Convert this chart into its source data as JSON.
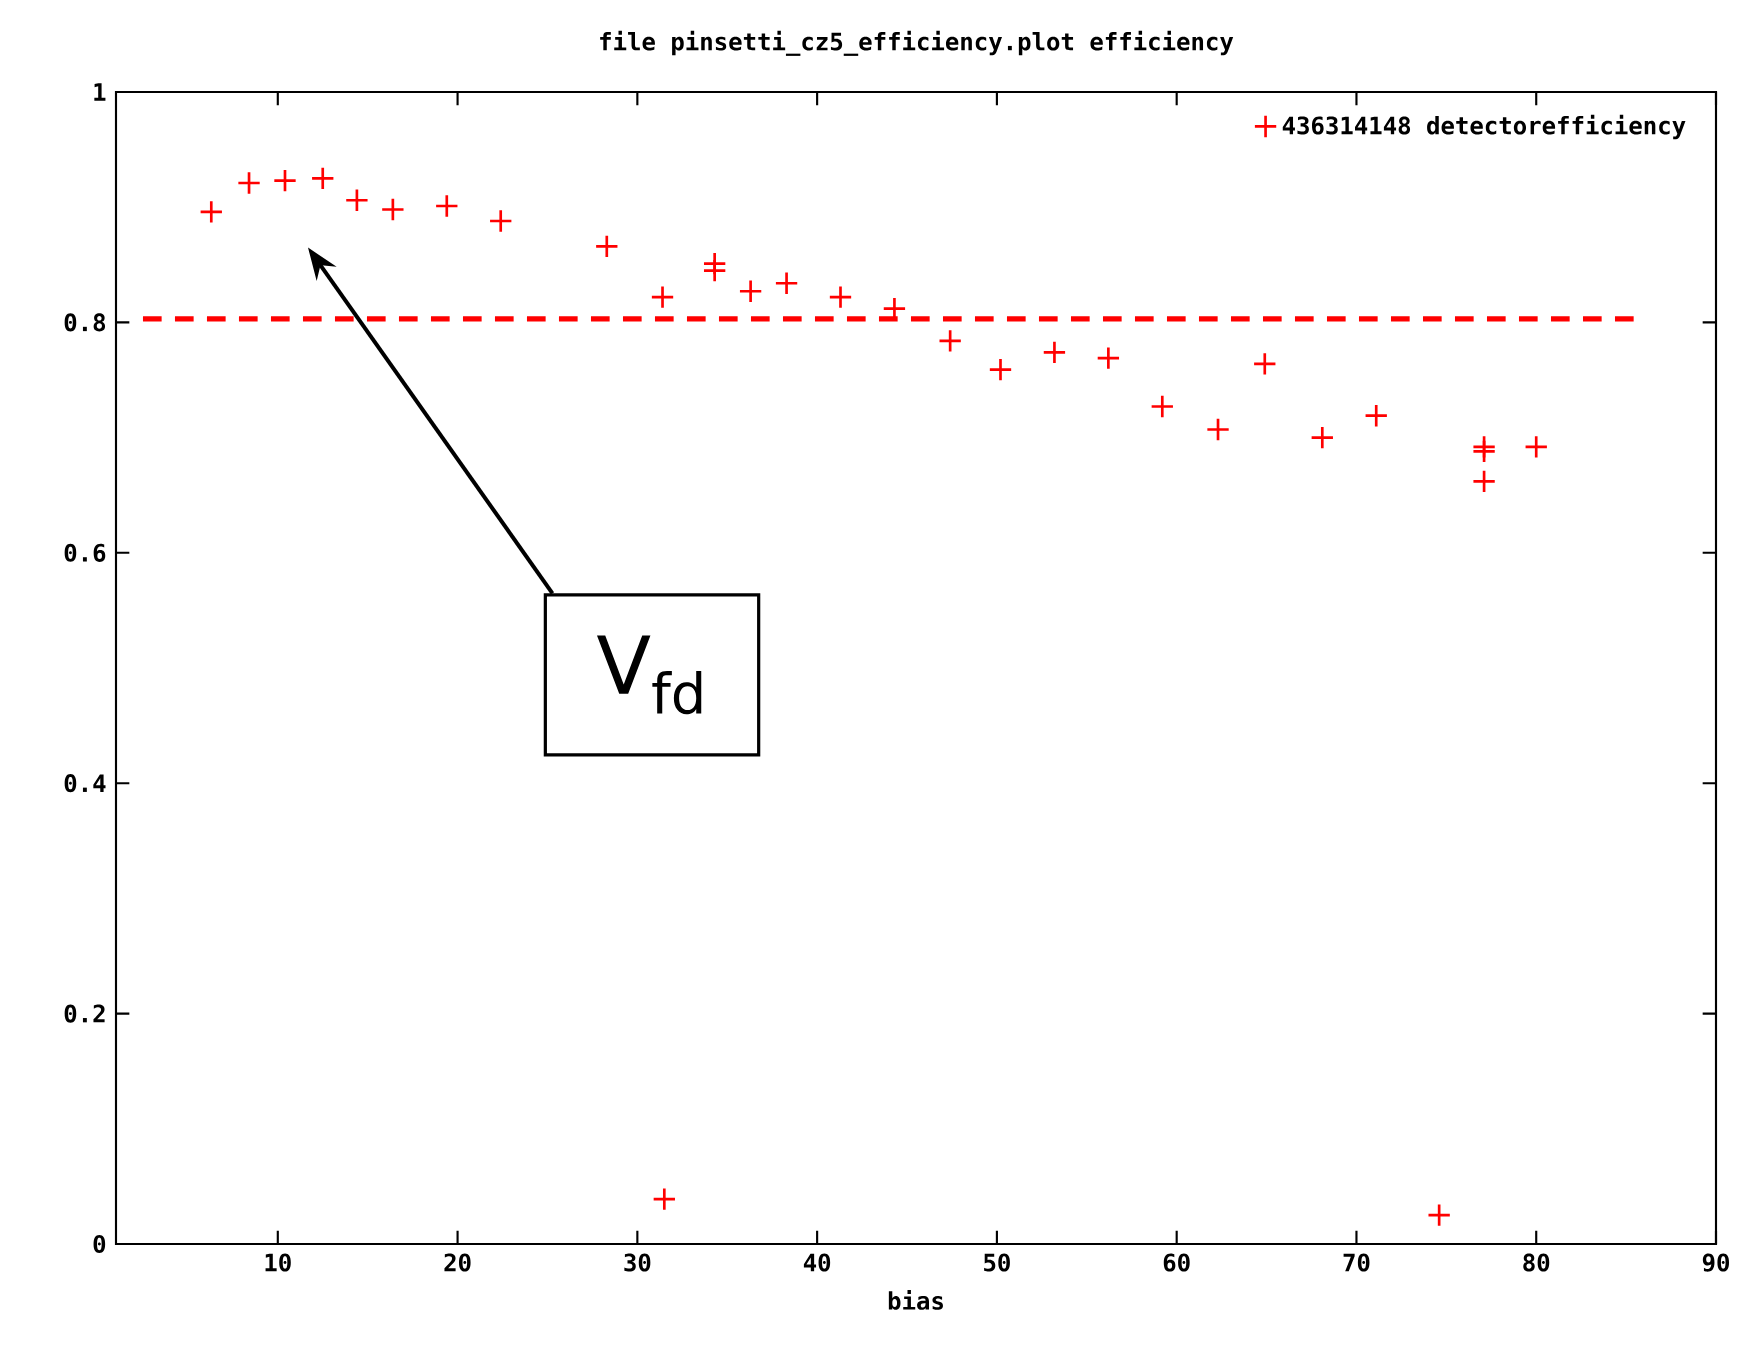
{
  "chart_data": {
    "type": "scatter",
    "title": "file pinsetti_cz5_efficiency.plot     efficiency",
    "xlabel": "bias",
    "x": [
      6.3,
      8.4,
      10.4,
      12.5,
      14.4,
      16.4,
      19.4,
      22.4,
      28.3,
      31.4,
      31.5,
      34.3,
      34.3,
      36.3,
      38.3,
      41.3,
      44.3,
      47.4,
      50.2,
      53.2,
      56.2,
      59.2,
      62.3,
      64.9,
      68.1,
      71.1,
      74.6,
      77.1,
      77.1,
      77.1,
      80.0
    ],
    "series": [
      {
        "name": "436314148 detectorefficiency",
        "color": "#ff0000",
        "values": [
          0.896,
          0.921,
          0.923,
          0.925,
          0.906,
          0.898,
          0.901,
          0.888,
          0.866,
          0.822,
          0.039,
          0.851,
          0.845,
          0.827,
          0.834,
          0.822,
          0.812,
          0.784,
          0.759,
          0.774,
          0.769,
          0.727,
          0.707,
          0.764,
          0.7,
          0.719,
          0.025,
          0.692,
          0.688,
          0.662,
          0.692
        ]
      }
    ],
    "xlim": [
      1,
      90
    ],
    "ylim": [
      0,
      1
    ],
    "xticks": [
      10,
      20,
      30,
      40,
      50,
      60,
      70,
      80,
      90
    ],
    "yticks": [
      0,
      0.2,
      0.4,
      0.6,
      0.8,
      1
    ],
    "ref_lines": [
      {
        "axis": "y",
        "value": 0.803,
        "color": "#ff0000",
        "line_style": "dashed"
      }
    ],
    "annotations": [
      "V$_{fd}$"
    ],
    "marker": "cross",
    "legend": "top right",
    "grid": false
  }
}
